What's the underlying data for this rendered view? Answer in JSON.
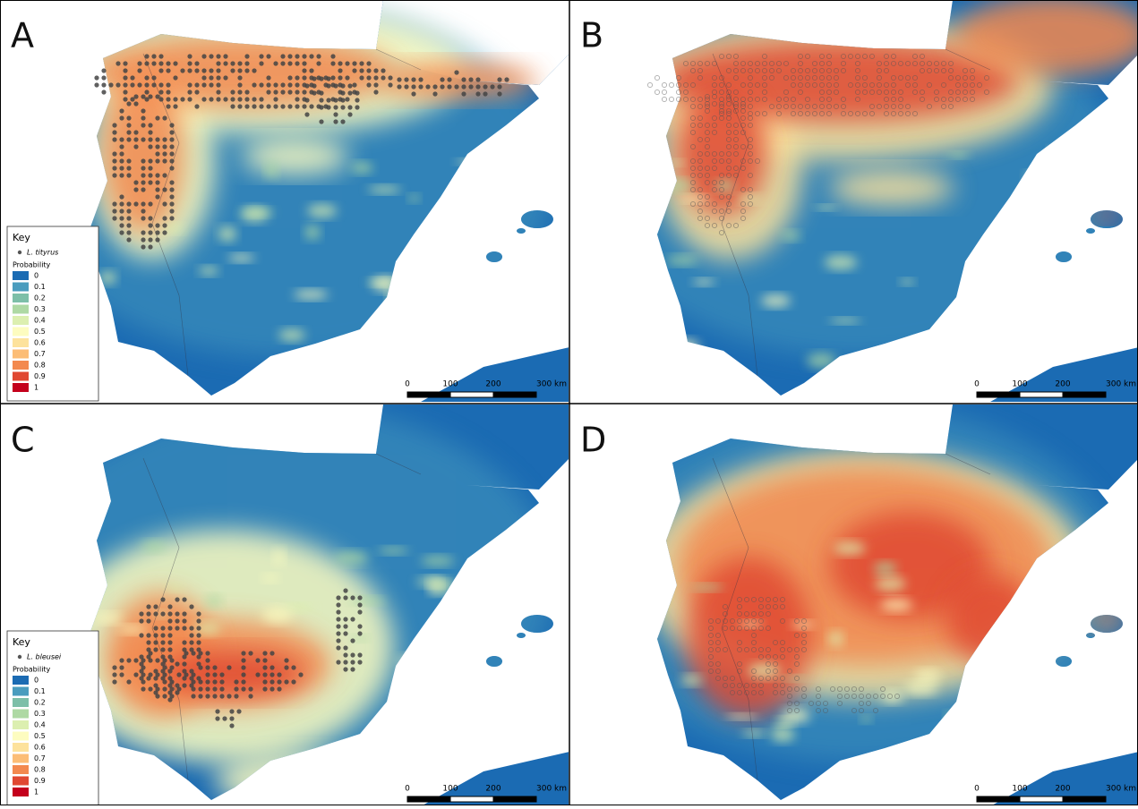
{
  "colors": [
    "#1b6bb3",
    "#4a9cbe",
    "#7dbfa8",
    "#aed9a4",
    "#dcefb0",
    "#fdfcc0",
    "#fde29c",
    "#fcbd76",
    "#f3894f",
    "#e04832",
    "#c4001c"
  ],
  "panels": [
    {
      "label": "A",
      "legend": {
        "title": "Key",
        "species": "L. tityrus",
        "subtitle": "Probability",
        "classes": [
          "0",
          "0.1",
          "0.2",
          "0.3",
          "0.4",
          "0.5",
          "0.6",
          "0.7",
          "0.8",
          "0.9",
          "1"
        ]
      },
      "scale": [
        "0",
        "100",
        "200",
        "300 km"
      ]
    },
    {
      "label": "B",
      "scale": [
        "0",
        "100",
        "200",
        "300 km"
      ]
    },
    {
      "label": "C",
      "legend": {
        "title": "Key",
        "species": "L. bleusei",
        "subtitle": "Probability",
        "classes": [
          "0",
          "0.1",
          "0.2",
          "0.3",
          "0.4",
          "0.5",
          "0.6",
          "0.7",
          "0.8",
          "0.9",
          "1"
        ]
      },
      "scale": [
        "0",
        "100",
        "200",
        "300 km"
      ]
    },
    {
      "label": "D",
      "scale": [
        "0",
        "100",
        "200",
        "300 km"
      ]
    }
  ]
}
